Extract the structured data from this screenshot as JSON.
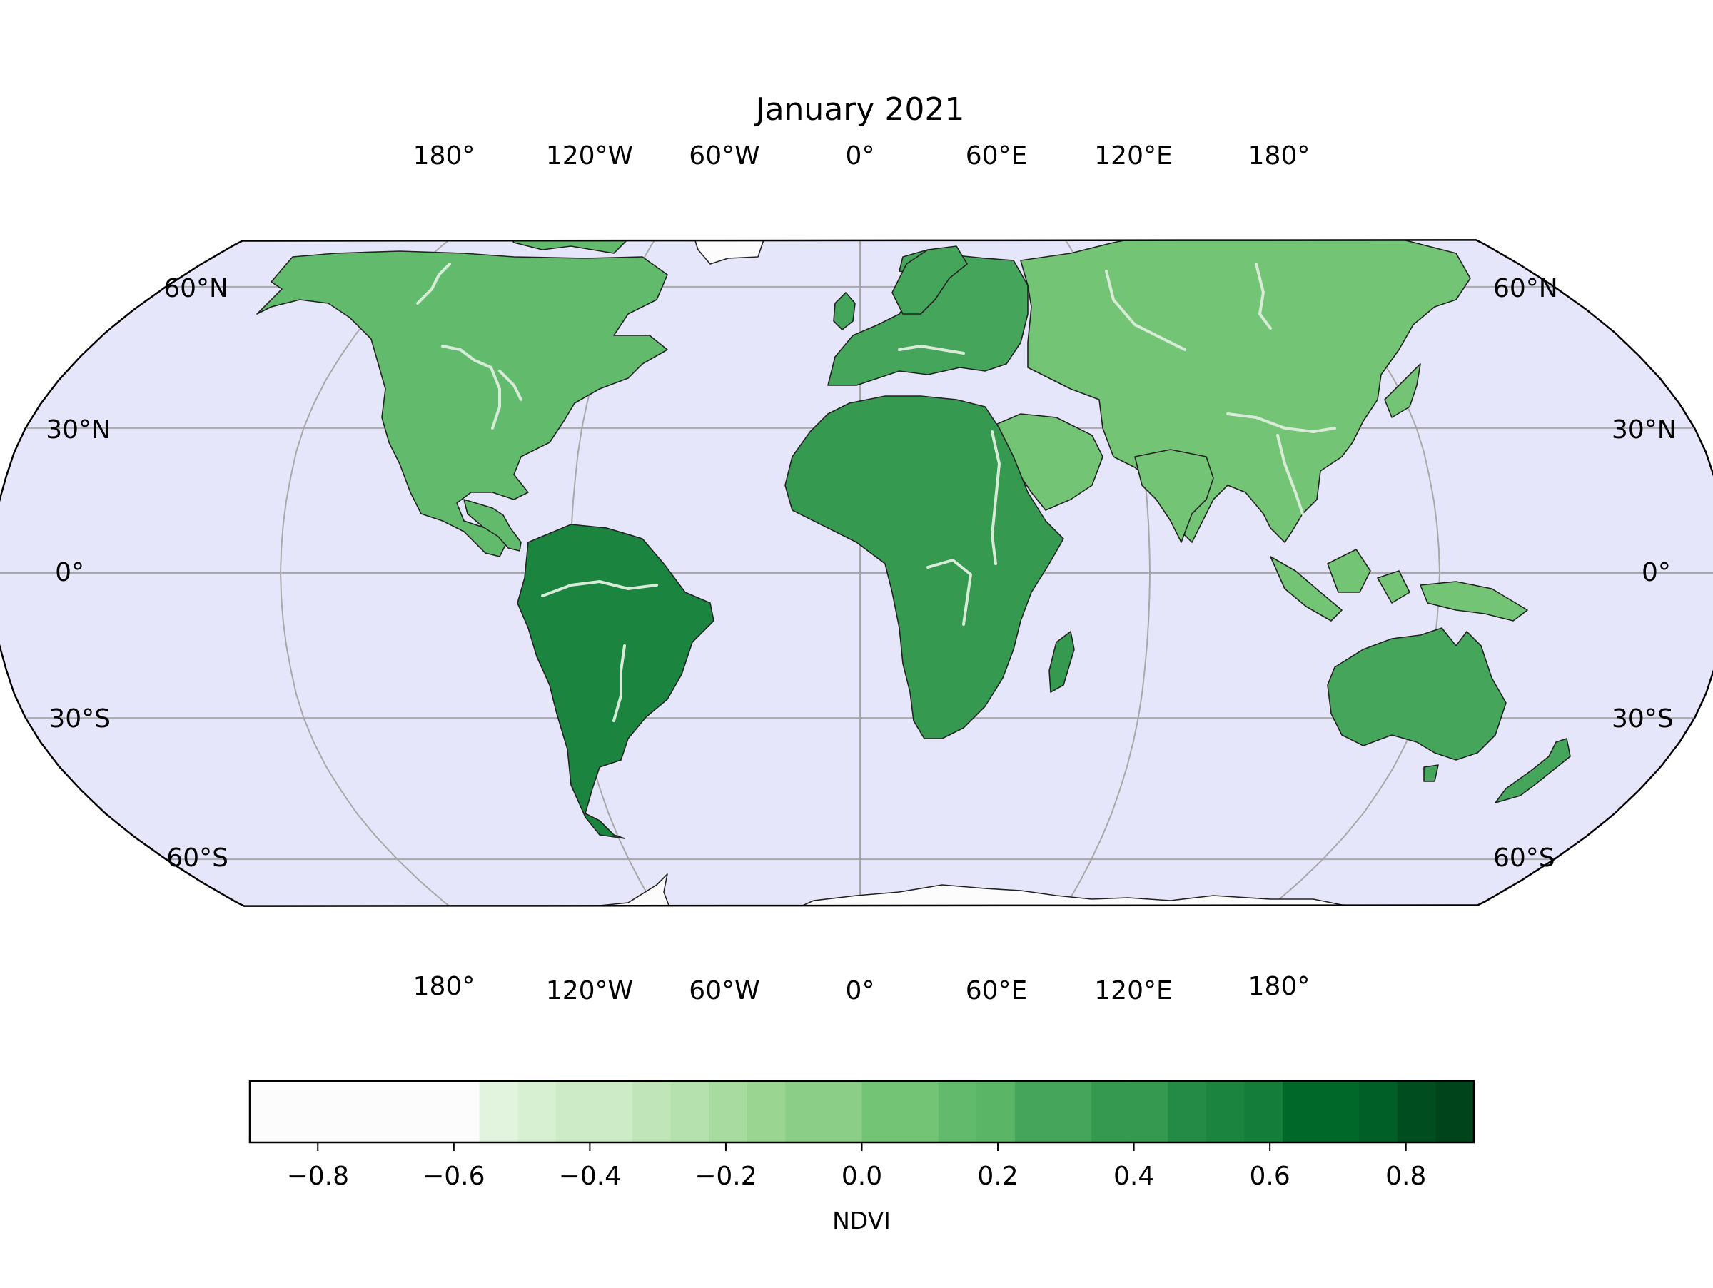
{
  "map": {
    "title": "January 2021",
    "projection": "Robinson",
    "ocean_color": "#e6e6fa",
    "ice_color": "#fcfcfc",
    "top_longitude_labels": [
      "180°",
      "120°W",
      "60°W",
      "0°",
      "60°E",
      "120°E",
      "180°"
    ],
    "bottom_longitude_labels": [
      "180°",
      "120°W",
      "60°W",
      "0°",
      "60°E",
      "120°E",
      "180°"
    ],
    "left_latitude_labels": [
      "60°N",
      "30°N",
      "0°",
      "30°S",
      "60°S"
    ],
    "right_latitude_labels": [
      "60°N",
      "30°N",
      "0°",
      "30°S",
      "60°S"
    ],
    "gridlines": true,
    "regions": [
      {
        "name": "North America",
        "ndvi": 0.15
      },
      {
        "name": "Greenland",
        "ndvi": -0.9
      },
      {
        "name": "South America",
        "ndvi": 0.55
      },
      {
        "name": "Europe",
        "ndvi": 0.3
      },
      {
        "name": "Asia",
        "ndvi": 0.05
      },
      {
        "name": "Africa",
        "ndvi": 0.4
      },
      {
        "name": "Australia",
        "ndvi": 0.25
      },
      {
        "name": "Antarctica",
        "ndvi": -0.9
      }
    ]
  },
  "colorbar": {
    "label": "NDVI",
    "range": [
      -0.9,
      0.9
    ],
    "ticks": [
      "−0.8",
      "−0.6",
      "−0.4",
      "−0.2",
      "0.0",
      "0.2",
      "0.4",
      "0.6",
      "0.8"
    ],
    "colormap": "Greens",
    "colors": [
      "#fcfcfc",
      "#fcfcfc",
      "#fcfcfc",
      "#fcfcfc",
      "#fcfcfc",
      "#fcfcfc",
      "#e2f4de",
      "#d8f0d2",
      "#cdebc6",
      "#cdebc6",
      "#bfe5b8",
      "#b5e1ae",
      "#a7dba0",
      "#9bd592",
      "#8ace88",
      "#8ace88",
      "#74c476",
      "#74c476",
      "#62bb6d",
      "#5ab567",
      "#45a55b",
      "#45a55b",
      "#359a4f",
      "#359a4f",
      "#238b45",
      "#1b843f",
      "#137d39",
      "#00692a",
      "#00692a",
      "#005f27",
      "#004e1f",
      "#00441b"
    ]
  }
}
